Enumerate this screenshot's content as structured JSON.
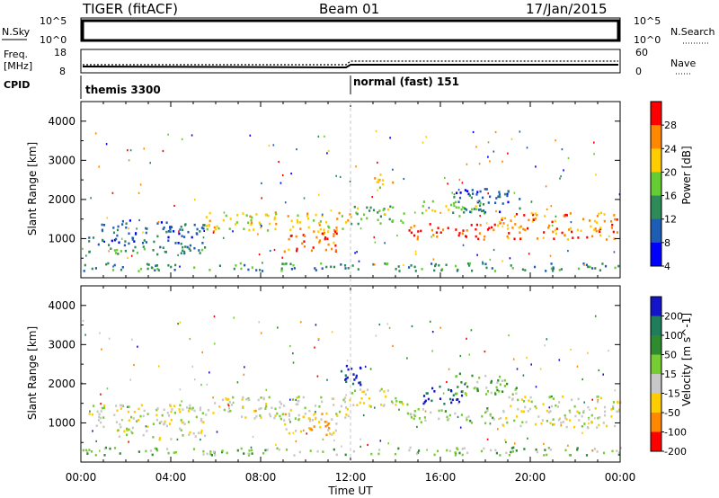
{
  "header": {
    "radar": "TIGER (fitACF)",
    "beam": "Beam 01",
    "date": "17/Jan/2015"
  },
  "nsky_panel": {
    "label": "N.Sky",
    "ticks_left": [
      "10^5",
      "10^0"
    ],
    "ticks_right": [
      "10^5",
      "10^0"
    ],
    "right_label": "N.Search"
  },
  "freq_panel": {
    "label_line1": "Freq.",
    "label_line2": "[MHz]",
    "ticks_left": [
      "18",
      "8"
    ],
    "ticks_right": [
      "60",
      "0"
    ],
    "right_label": "Nave"
  },
  "cpid_panel": {
    "label": "CPID",
    "segments": [
      {
        "text": "themis 3300",
        "start_hour": 0
      },
      {
        "text": "normal (fast) 151",
        "start_hour": 12
      }
    ]
  },
  "chart_data": [
    {
      "type": "heatmap",
      "name": "power",
      "ylabel": "Slant Range [km]",
      "xlabel": "Time UT",
      "x_ticks": [
        "00:00",
        "04:00",
        "08:00",
        "12:00",
        "16:00",
        "20:00",
        "00:00"
      ],
      "x_range_hours": [
        0,
        24
      ],
      "ylim": [
        0,
        4500
      ],
      "y_ticks": [
        1000,
        2000,
        3000,
        4000
      ],
      "colorbar": {
        "label": "Power [dB]",
        "ticks": [
          "4",
          "8",
          "12",
          "16",
          "20",
          "24",
          "28"
        ],
        "colors": [
          "#0000ff",
          "#1e5db4",
          "#2e8b57",
          "#66cc33",
          "#ffcc00",
          "#ff8800",
          "#ff0000"
        ]
      },
      "bands": [
        {
          "t0": 0.3,
          "t1": 5.5,
          "r0": 600,
          "r1": 900,
          "level": 2
        },
        {
          "t0": 0.3,
          "t1": 5.5,
          "r0": 900,
          "r1": 1500,
          "level": 1
        },
        {
          "t0": 5.5,
          "t1": 12.0,
          "r0": 1200,
          "r1": 1700,
          "level": 4
        },
        {
          "t0": 9.0,
          "t1": 11.5,
          "r0": 700,
          "r1": 1300,
          "level": 5
        },
        {
          "t0": 12.0,
          "t1": 14.5,
          "r0": 1400,
          "r1": 1900,
          "level": 3
        },
        {
          "t0": 13.0,
          "t1": 14.0,
          "r0": 2300,
          "r1": 2700,
          "level": 4
        },
        {
          "t0": 14.5,
          "t1": 18.5,
          "r0": 1000,
          "r1": 1400,
          "level": 6
        },
        {
          "t0": 15.0,
          "t1": 18.0,
          "r0": 1600,
          "r1": 2000,
          "level": 3
        },
        {
          "t0": 18.5,
          "t1": 24.0,
          "r0": 1000,
          "r1": 1700,
          "level": 5
        },
        {
          "t0": 16.5,
          "t1": 19.5,
          "r0": 1700,
          "r1": 2300,
          "level": 1
        },
        {
          "t0": 0.0,
          "t1": 24.0,
          "r0": 200,
          "r1": 400,
          "level": 2
        }
      ]
    },
    {
      "type": "heatmap",
      "name": "velocity",
      "ylabel": "Slant Range [km]",
      "xlabel": "Time UT",
      "x_ticks": [
        "00:00",
        "04:00",
        "08:00",
        "12:00",
        "16:00",
        "20:00",
        "00:00"
      ],
      "x_range_hours": [
        0,
        24
      ],
      "ylim": [
        0,
        4500
      ],
      "y_ticks": [
        1000,
        2000,
        3000,
        4000
      ],
      "colorbar": {
        "label": "Velocity [m s^-1]",
        "ticks": [
          "200",
          "100",
          "50",
          "15",
          "-15",
          "-50",
          "-100",
          "-200"
        ],
        "colors": [
          "#1414c8",
          "#1e7d5a",
          "#2e8b2e",
          "#77cc33",
          "#c8c8c8",
          "#ffcc00",
          "#ff8800",
          "#ff0000"
        ]
      },
      "bands": [
        {
          "t0": 0.3,
          "t1": 5.5,
          "r0": 600,
          "r1": 1500,
          "level": 4
        },
        {
          "t0": 5.5,
          "t1": 12.0,
          "r0": 1100,
          "r1": 1700,
          "level": 4
        },
        {
          "t0": 9.0,
          "t1": 11.5,
          "r0": 700,
          "r1": 1300,
          "level": 5
        },
        {
          "t0": 12.0,
          "t1": 14.5,
          "r0": 1400,
          "r1": 1900,
          "level": 4
        },
        {
          "t0": 11.5,
          "t1": 13.0,
          "r0": 2000,
          "r1": 2500,
          "level": 0
        },
        {
          "t0": 14.5,
          "t1": 18.5,
          "r0": 1000,
          "r1": 1400,
          "level": 3
        },
        {
          "t0": 15.0,
          "t1": 17.0,
          "r0": 1500,
          "r1": 2000,
          "level": 0
        },
        {
          "t0": 18.5,
          "t1": 24.0,
          "r0": 900,
          "r1": 1700,
          "level": 4
        },
        {
          "t0": 16.5,
          "t1": 19.5,
          "r0": 1700,
          "r1": 2300,
          "level": 3
        },
        {
          "t0": 0.0,
          "t1": 24.0,
          "r0": 200,
          "r1": 400,
          "level": 3
        }
      ]
    }
  ]
}
